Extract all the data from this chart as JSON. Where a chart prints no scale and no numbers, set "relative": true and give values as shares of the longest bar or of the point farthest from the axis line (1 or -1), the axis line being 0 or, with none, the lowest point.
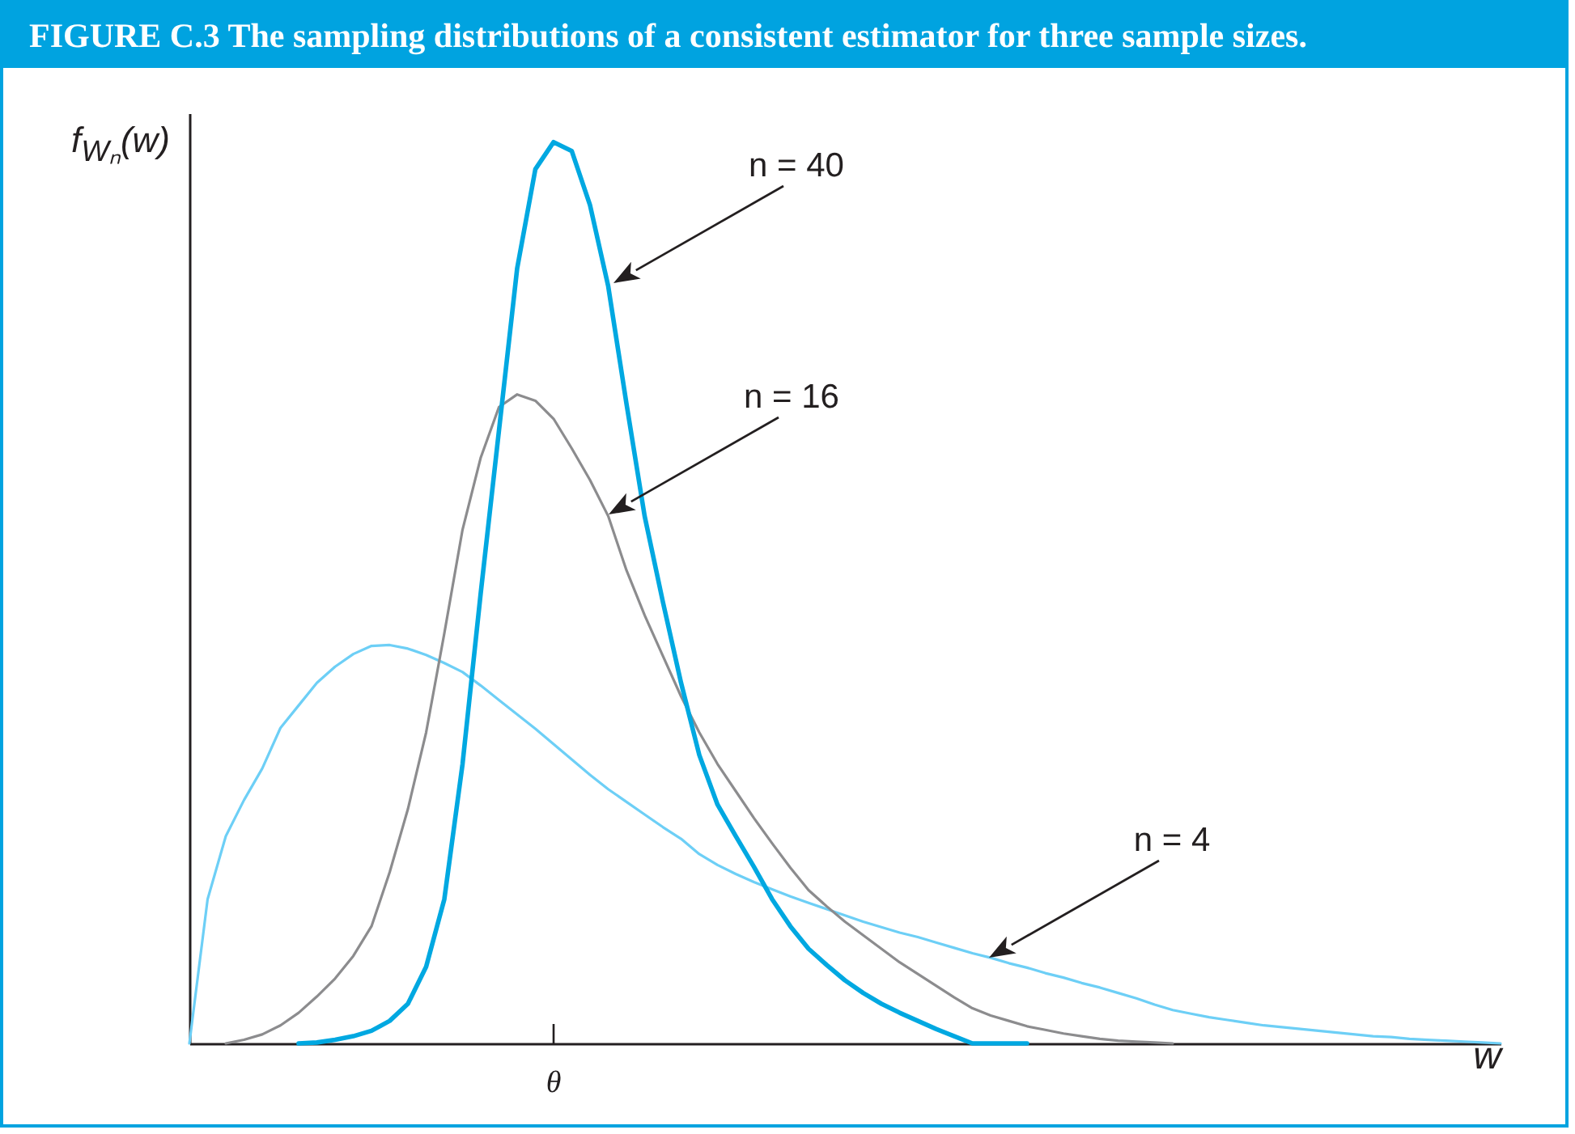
{
  "chart_data": {
    "type": "line",
    "title": "FIGURE C.3 The sampling distributions of a consistent estimator for three sample sizes.",
    "xlabel": "w",
    "ylabel": "f$_{Wₙ}$(w)",
    "relative": true,
    "categories": [
      null,
      null,
      null,
      null,
      null,
      null,
      null,
      null,
      null,
      null,
      null,
      null,
      null,
      null,
      null,
      null,
      null,
      null,
      null,
      null,
      null,
      null,
      null,
      null,
      null,
      null,
      null,
      null,
      null,
      null,
      null,
      null,
      null,
      null,
      null,
      null,
      null,
      null,
      null,
      null,
      null,
      null,
      null,
      null,
      null,
      null,
      null,
      null,
      null,
      null,
      null,
      null,
      null,
      null,
      null,
      null,
      null,
      null,
      null,
      null,
      null,
      null,
      null,
      null,
      null,
      null,
      null,
      null,
      null,
      null,
      null,
      null,
      null
    ],
    "series": [
      {
        "color": "#6dcff6",
        "values": [
          0,
          0.16,
          0.23,
          0.27,
          0.305,
          0.35,
          0.375,
          0.4,
          0.418,
          0.432,
          0.441,
          0.442,
          0.438,
          0.431,
          0.422,
          0.412,
          0.397,
          0.381,
          0.365,
          0.349,
          0.332,
          0.315,
          0.298,
          0.282,
          0.268,
          0.254,
          0.24,
          0.227,
          0.21,
          0.198,
          0.188,
          0.179,
          0.171,
          0.163,
          0.156,
          0.149,
          0.142,
          0.135,
          0.129,
          0.123,
          0.118,
          0.112,
          0.106,
          0.1,
          0.095,
          0.089,
          0.084,
          0.078,
          0.073,
          0.067,
          0.062,
          0.056,
          0.05,
          0.043,
          0.037,
          0.033,
          0.029,
          0.026,
          0.023,
          0.02,
          0.018,
          0.016,
          0.014,
          0.012,
          0.01,
          0.008,
          0.007,
          0.005,
          0.004,
          0.003,
          0.002,
          0.001,
          0
        ]
      },
      {
        "color": "#8c8c8e",
        "values": [
          null,
          null,
          0,
          0.004,
          0.01,
          0.02,
          0.034,
          0.052,
          0.072,
          0.097,
          0.13,
          0.19,
          0.26,
          0.345,
          0.455,
          0.57,
          0.65,
          0.706,
          0.72,
          0.713,
          0.693,
          0.66,
          0.625,
          0.585,
          0.525,
          0.475,
          0.43,
          0.385,
          0.345,
          0.31,
          0.28,
          0.25,
          0.222,
          0.195,
          0.17,
          0.152,
          0.135,
          0.12,
          0.105,
          0.09,
          0.077,
          0.064,
          0.051,
          0.039,
          0.031,
          0.025,
          0.019,
          0.015,
          0.011,
          0.008,
          0.005,
          0.003,
          0.002,
          0.001,
          0,
          null,
          null,
          null,
          null,
          null,
          null,
          null,
          null,
          null,
          null,
          null,
          null,
          null,
          null,
          null,
          null,
          null,
          null
        ]
      },
      {
        "color": "#00a8e1",
        "values": [
          null,
          null,
          null,
          null,
          null,
          null,
          0,
          0.001,
          0.004,
          0.008,
          0.014,
          0.025,
          0.044,
          0.085,
          0.16,
          0.31,
          0.5,
          0.68,
          0.86,
          0.97,
          1,
          0.99,
          0.93,
          0.84,
          0.71,
          0.585,
          0.49,
          0.4,
          0.32,
          0.265,
          0.23,
          0.196,
          0.16,
          0.13,
          0.105,
          0.087,
          0.07,
          0.056,
          0.044,
          0.034,
          0.025,
          0.016,
          0.008,
          0,
          0,
          0,
          0,
          null,
          null,
          null,
          null,
          null,
          null,
          null,
          null,
          null,
          null,
          null,
          null,
          null,
          null,
          null,
          null,
          null,
          null,
          null,
          null,
          null,
          null,
          null,
          null,
          null,
          null
        ]
      }
    ],
    "annotations": [
      "θ",
      "n = 40",
      "n = 16",
      "n = 4"
    ]
  }
}
